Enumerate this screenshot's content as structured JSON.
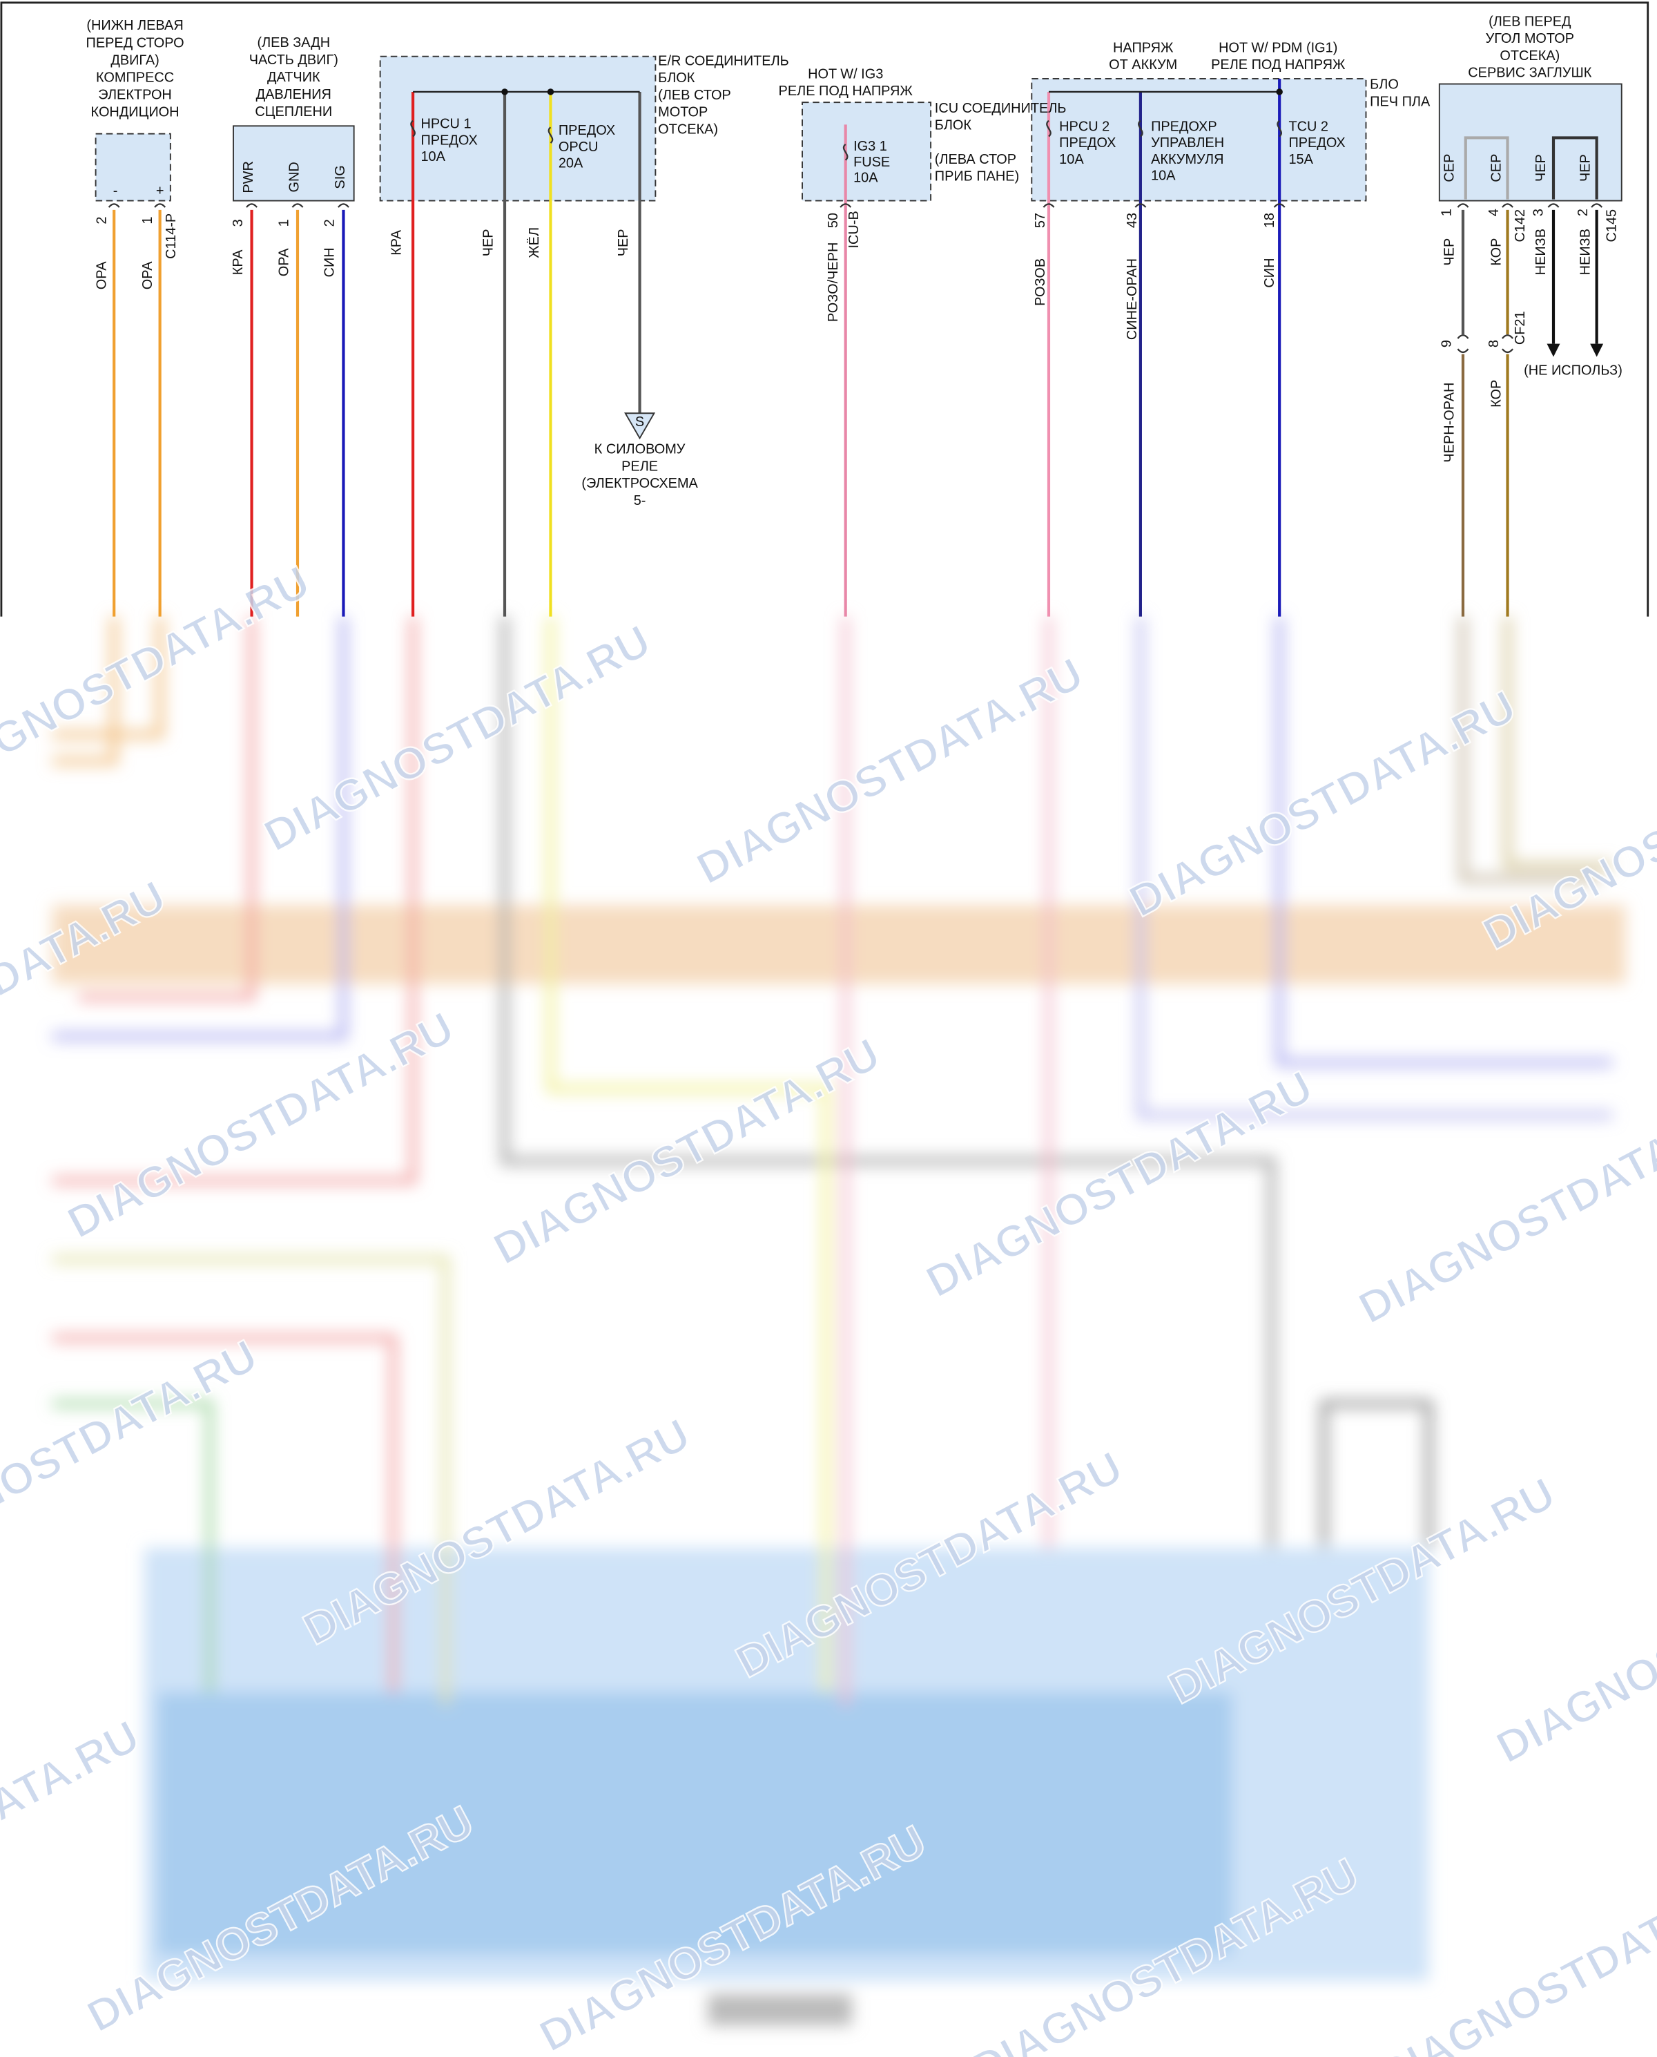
{
  "components": [
    {
      "label": [
        "(НИЖН ЛЕВАЯ",
        "ПЕРЕД СТОРО",
        "ДВИГА)",
        "КОМПРЕСС",
        "ЭЛЕКТРОН",
        "КОНДИЦИОН"
      ],
      "terminals": [
        "-",
        "+"
      ],
      "pins": [
        "2",
        "1"
      ],
      "connector": "C114-P",
      "wires": [
        "ОРА",
        "ОРА"
      ]
    },
    {
      "label": [
        "(ЛЕВ ЗАДН",
        "ЧАСТЬ ДВИГ)",
        "ДАТЧИК",
        "ДАВЛЕНИЯ",
        "СЦЕПЛЕНИ"
      ],
      "terminals": [
        "PWR",
        "GND",
        "SIG"
      ],
      "pins": [
        "3",
        "1",
        "2"
      ],
      "wires": [
        "КРА",
        "ОРА",
        "СИН"
      ]
    },
    {
      "label": [
        "E/R СОЕДИНИТЕЛЬ",
        "БЛОК",
        "(ЛЕВ СТОР",
        "МОТОР",
        "ОТСЕКА)"
      ],
      "fuses": [
        [
          "HPCU 1",
          "ПРЕДОХ",
          "10A"
        ],
        [
          "ПРЕДОХ",
          "OPCU",
          "20A"
        ]
      ],
      "wires": [
        "КРА",
        "ЧЕР",
        "ЖЁЛ",
        "ЧЕР"
      ],
      "ground": {
        "symbol": "S",
        "label": [
          "К СИЛОВОМУ",
          "РЕЛЕ",
          "(ЭЛЕКТРОСХЕМА",
          "5-"
        ]
      }
    },
    {
      "supply": [
        "HOT W/ IG3",
        "РЕЛЕ ПОД НАПРЯЖ"
      ],
      "label": [
        "ICU СОЕДИНИТЕЛЬ",
        "БЛОК",
        "(ЛЕВА СТОР",
        "ПРИБ ПАНЕ)"
      ],
      "fuses": [
        [
          "IG3 1",
          "FUSE",
          "10A"
        ]
      ],
      "pins": [
        "50"
      ],
      "connector": "ICU-B",
      "wires": [
        "РОЗО/ЧЕРН"
      ]
    },
    {
      "supply": [
        [
          "НАПРЯЖ",
          "ОТ АККУМ"
        ],
        [
          "HOT W/ PDM (IG1)",
          "РЕЛЕ ПОД НАПРЯЖ"
        ]
      ],
      "label": [
        "БЛО",
        "ПЕЧ ПЛА"
      ],
      "fuses": [
        [
          "HPCU 2",
          "ПРЕДОХ",
          "10A"
        ],
        [
          "ПРЕДОХР",
          "УПРАВЛЕН",
          "АККУМУЛЯ",
          "10A"
        ],
        [
          "TCU 2",
          "ПРЕДОХ",
          "15A"
        ]
      ],
      "pins": [
        "57",
        "43",
        "18"
      ],
      "wires": [
        "РОЗОВ",
        "СИНЕ-ОРАН",
        "СИН"
      ]
    },
    {
      "label": [
        "(ЛЕВ ПЕРЕД",
        "УГОЛ МОТОР",
        "ОТСЕКА)",
        "СЕРВИС ЗАГЛУШК"
      ],
      "terminals": [
        "СЕР",
        "СЕР",
        "ЧЕР",
        "ЧЕР"
      ],
      "pins": [
        "1",
        "4",
        "3",
        "2"
      ],
      "connectors": [
        "C142",
        "C145",
        "CF21"
      ],
      "wires": [
        "ЧЕР",
        "КОР",
        "НЕИЗВ",
        "НЕИЗВ"
      ],
      "inline_pins": [
        "9",
        "8"
      ],
      "lower_wires": [
        "ЧЕРН-ОРАН",
        "КОР"
      ],
      "note": "(НЕ ИСПОЛЬЗ)"
    }
  ],
  "watermark": "DIAGNOSTDATA.RU"
}
